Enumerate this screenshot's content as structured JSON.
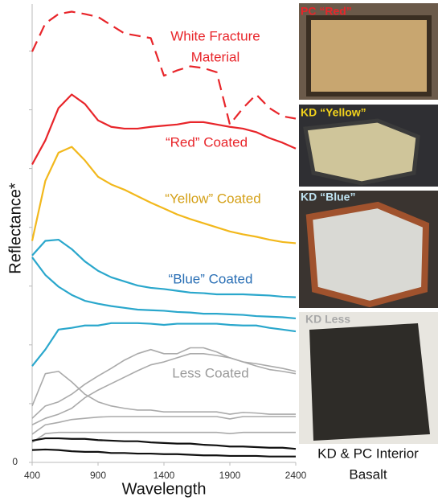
{
  "chart_data": {
    "type": "line",
    "xlabel": "Wavelength",
    "ylabel": "Reflectance*",
    "xlim": [
      400,
      2400
    ],
    "xticks": [
      400,
      900,
      1400,
      1900,
      2400
    ],
    "ylim": [
      0,
      7.8
    ],
    "yticks": [
      0
    ],
    "yminorticks": [
      1,
      2,
      3,
      4,
      5,
      6,
      7
    ],
    "x": [
      400,
      500,
      600,
      700,
      800,
      900,
      1000,
      1100,
      1200,
      1300,
      1400,
      1500,
      1600,
      1700,
      1800,
      1900,
      2000,
      2100,
      2200,
      2300,
      2400
    ],
    "series": [
      {
        "color": "#e8252a",
        "dash": true,
        "values": [
          6.99,
          7.47,
          7.63,
          7.67,
          7.63,
          7.58,
          7.44,
          7.3,
          7.26,
          7.22,
          6.58,
          6.67,
          6.74,
          6.71,
          6.64,
          5.75,
          6.03,
          6.26,
          6.03,
          5.89,
          5.85
        ]
      },
      {
        "color": "#e8252a",
        "values": [
          5.07,
          5.48,
          6.03,
          6.26,
          6.1,
          5.82,
          5.71,
          5.68,
          5.68,
          5.71,
          5.73,
          5.75,
          5.79,
          5.79,
          5.75,
          5.71,
          5.68,
          5.62,
          5.52,
          5.44,
          5.34
        ]
      },
      {
        "color": "#f2b81c",
        "values": [
          3.77,
          4.79,
          5.27,
          5.37,
          5.14,
          4.86,
          4.73,
          4.64,
          4.53,
          4.42,
          4.32,
          4.22,
          4.14,
          4.07,
          4.0,
          3.93,
          3.88,
          3.84,
          3.79,
          3.75,
          3.73
        ]
      },
      {
        "color": "#2aa7cc",
        "values": [
          3.52,
          3.77,
          3.79,
          3.63,
          3.42,
          3.26,
          3.15,
          3.08,
          3.01,
          2.97,
          2.95,
          2.92,
          2.89,
          2.88,
          2.86,
          2.86,
          2.86,
          2.85,
          2.84,
          2.82,
          2.81
        ]
      },
      {
        "color": "#2aa7cc",
        "values": [
          3.49,
          3.19,
          2.99,
          2.85,
          2.75,
          2.7,
          2.66,
          2.63,
          2.6,
          2.59,
          2.58,
          2.56,
          2.55,
          2.53,
          2.53,
          2.52,
          2.51,
          2.49,
          2.48,
          2.47,
          2.45
        ]
      },
      {
        "color": "#2aa7cc",
        "values": [
          1.64,
          1.92,
          2.26,
          2.29,
          2.33,
          2.33,
          2.37,
          2.37,
          2.37,
          2.36,
          2.34,
          2.36,
          2.36,
          2.36,
          2.36,
          2.34,
          2.33,
          2.33,
          2.29,
          2.26,
          2.23
        ]
      },
      {
        "color": "#aaaaaa",
        "values": [
          0.96,
          1.51,
          1.55,
          1.37,
          1.16,
          1.03,
          0.96,
          0.92,
          0.89,
          0.89,
          0.86,
          0.86,
          0.86,
          0.86,
          0.86,
          0.82,
          0.85,
          0.84,
          0.82,
          0.82,
          0.82
        ]
      },
      {
        "color": "#aaaaaa",
        "values": [
          0.75,
          0.96,
          1.03,
          1.16,
          1.33,
          1.47,
          1.6,
          1.74,
          1.85,
          1.92,
          1.85,
          1.85,
          1.95,
          1.95,
          1.88,
          1.78,
          1.71,
          1.64,
          1.58,
          1.55,
          1.51
        ]
      },
      {
        "color": "#aaaaaa",
        "values": [
          0.64,
          0.75,
          0.82,
          0.92,
          1.1,
          1.23,
          1.34,
          1.45,
          1.56,
          1.66,
          1.71,
          1.78,
          1.85,
          1.85,
          1.82,
          1.78,
          1.71,
          1.68,
          1.64,
          1.6,
          1.55
        ]
      },
      {
        "color": "#aaaaaa",
        "values": [
          0.48,
          0.64,
          0.68,
          0.73,
          0.75,
          0.77,
          0.78,
          0.78,
          0.78,
          0.78,
          0.78,
          0.78,
          0.78,
          0.78,
          0.78,
          0.74,
          0.78,
          0.78,
          0.78,
          0.78,
          0.78
        ]
      },
      {
        "color": "#aaaaaa",
        "values": [
          0.34,
          0.49,
          0.51,
          0.51,
          0.51,
          0.51,
          0.51,
          0.51,
          0.51,
          0.51,
          0.51,
          0.51,
          0.51,
          0.51,
          0.51,
          0.49,
          0.51,
          0.51,
          0.51,
          0.51,
          0.51
        ]
      },
      {
        "color": "#111111",
        "values": [
          0.37,
          0.41,
          0.41,
          0.4,
          0.4,
          0.38,
          0.37,
          0.36,
          0.36,
          0.34,
          0.33,
          0.32,
          0.32,
          0.3,
          0.29,
          0.27,
          0.27,
          0.26,
          0.25,
          0.25,
          0.23
        ]
      },
      {
        "color": "#111111",
        "values": [
          0.21,
          0.22,
          0.21,
          0.19,
          0.18,
          0.18,
          0.16,
          0.16,
          0.15,
          0.15,
          0.14,
          0.14,
          0.13,
          0.12,
          0.12,
          0.11,
          0.11,
          0.11,
          0.1,
          0.1,
          0.1
        ]
      }
    ],
    "annotations": [
      {
        "text": "White Fracture",
        "color": "#e8252a"
      },
      {
        "text": "Material",
        "color": "#e8252a"
      },
      {
        "text": "“Red” Coated",
        "color": "#e8252a"
      },
      {
        "text": "“Yellow” Coated",
        "color": "#d4a017"
      },
      {
        "text": "“Blue” Coated",
        "color": "#2a6fb5"
      },
      {
        "text": "Less Coated",
        "color": "#9a9a9a"
      }
    ],
    "photo_labels": [
      {
        "text": "PC “Red”",
        "color": "#e8252a"
      },
      {
        "text": "KD “Yellow”",
        "color": "#f2d21c"
      },
      {
        "text": "KD “Blue”",
        "color": "#bfe3f2"
      },
      {
        "text": "KD Less",
        "color": "#a8a8a8"
      }
    ],
    "interior_label": [
      "KD & PC Interior",
      "Basalt"
    ]
  }
}
